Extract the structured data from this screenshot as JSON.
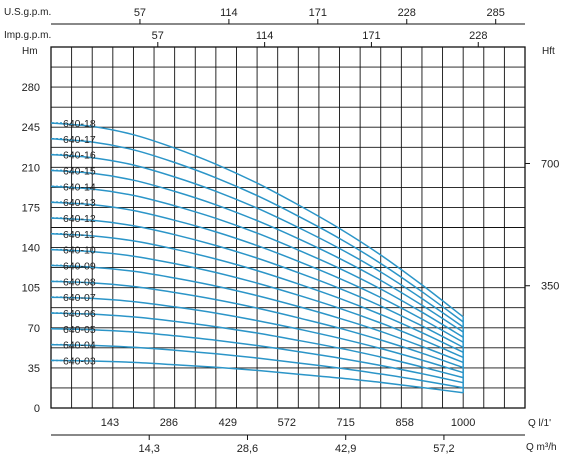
{
  "chart_data": {
    "type": "line",
    "title": "",
    "colors": {
      "curve": "#2b95c8",
      "grid": "#111111",
      "text": "#222222"
    },
    "grid": true,
    "x_unit_flow": "Q l/1'",
    "x_unit_m3h": "Q m³/h",
    "x_unit_usgpm": "U.S.g.p.m.",
    "x_unit_impgpm": "Imp.g.p.m.",
    "y_unit_left": "Hm",
    "y_unit_right": "Hft",
    "xlim": [
      0,
      1150
    ],
    "ylim": [
      0,
      315
    ],
    "x_ticks_flow": [
      "143",
      "286",
      "429",
      "572",
      "715",
      "858",
      "1000"
    ],
    "x_ticks_m3h": [
      "14,3",
      "28,6",
      "42,9",
      "57,2"
    ],
    "x_ticks_usgpm": [
      "57",
      "114",
      "171",
      "228",
      "285"
    ],
    "x_ticks_impgpm": [
      "57",
      "114",
      "171",
      "228"
    ],
    "y_ticks": [
      "0",
      "35",
      "70",
      "105",
      "140",
      "175",
      "210",
      "245",
      "280"
    ],
    "y_ticks_right": [
      "350",
      "700"
    ],
    "x": [
      0,
      100,
      200,
      300,
      400,
      500,
      600,
      700,
      800,
      900,
      1000
    ],
    "series": [
      {
        "name": "640-03",
        "values": [
          41.5,
          41.0,
          39.8,
          37.8,
          35.5,
          32.8,
          29.5,
          26.2,
          22.3,
          17.9,
          13.3
        ]
      },
      {
        "name": "640-04",
        "values": [
          55.3,
          54.6,
          53.0,
          50.4,
          47.3,
          43.6,
          39.3,
          34.8,
          29.7,
          23.9,
          17.7
        ]
      },
      {
        "name": "640-05",
        "values": [
          69.1,
          68.3,
          66.3,
          63.0,
          59.1,
          54.5,
          49.2,
          43.5,
          37.1,
          29.9,
          22.1
        ]
      },
      {
        "name": "640-06",
        "values": [
          82.9,
          81.9,
          79.5,
          75.6,
          70.9,
          65.4,
          59.0,
          52.2,
          44.5,
          35.8,
          26.5
        ]
      },
      {
        "name": "640-07",
        "values": [
          96.7,
          95.6,
          92.8,
          88.2,
          82.8,
          76.3,
          68.9,
          60.9,
          51.9,
          41.8,
          30.9
        ]
      },
      {
        "name": "640-08",
        "values": [
          110.5,
          109.2,
          106.0,
          100.8,
          94.6,
          87.2,
          78.7,
          69.6,
          59.3,
          47.8,
          35.3
        ]
      },
      {
        "name": "640-09",
        "values": [
          124.4,
          122.9,
          119.3,
          113.4,
          106.4,
          98.1,
          88.6,
          78.3,
          66.8,
          53.7,
          39.8
        ]
      },
      {
        "name": "640-10",
        "values": [
          138.2,
          136.5,
          132.5,
          126.0,
          118.2,
          109.0,
          98.4,
          87.0,
          74.2,
          59.7,
          44.2
        ]
      },
      {
        "name": "640-11",
        "values": [
          152.0,
          150.2,
          145.8,
          138.6,
          130.0,
          119.9,
          108.3,
          95.7,
          81.6,
          65.7,
          48.6
        ]
      },
      {
        "name": "640-12",
        "values": [
          165.8,
          163.8,
          159.0,
          151.2,
          141.8,
          130.8,
          118.1,
          104.4,
          89.0,
          71.6,
          53.0
        ]
      },
      {
        "name": "640-13",
        "values": [
          179.6,
          177.5,
          172.3,
          163.8,
          153.7,
          141.7,
          128.0,
          113.1,
          96.4,
          77.6,
          57.4
        ]
      },
      {
        "name": "640-14",
        "values": [
          193.4,
          191.1,
          185.5,
          176.4,
          165.5,
          152.6,
          137.8,
          121.8,
          103.8,
          83.6,
          61.8
        ]
      },
      {
        "name": "640-15",
        "values": [
          207.3,
          204.8,
          198.8,
          189.0,
          177.3,
          163.5,
          147.7,
          130.5,
          111.3,
          89.6,
          66.3
        ]
      },
      {
        "name": "640-16",
        "values": [
          221.1,
          218.4,
          212.0,
          201.6,
          189.1,
          174.4,
          157.5,
          139.2,
          118.7,
          95.5,
          70.7
        ]
      },
      {
        "name": "640-17",
        "values": [
          234.9,
          232.1,
          225.3,
          214.2,
          200.9,
          185.3,
          167.4,
          147.9,
          126.1,
          101.5,
          75.1
        ]
      },
      {
        "name": "640-18",
        "values": [
          248.7,
          245.7,
          238.5,
          226.8,
          212.7,
          196.2,
          177.2,
          156.6,
          133.5,
          107.4,
          79.5
        ]
      }
    ]
  }
}
